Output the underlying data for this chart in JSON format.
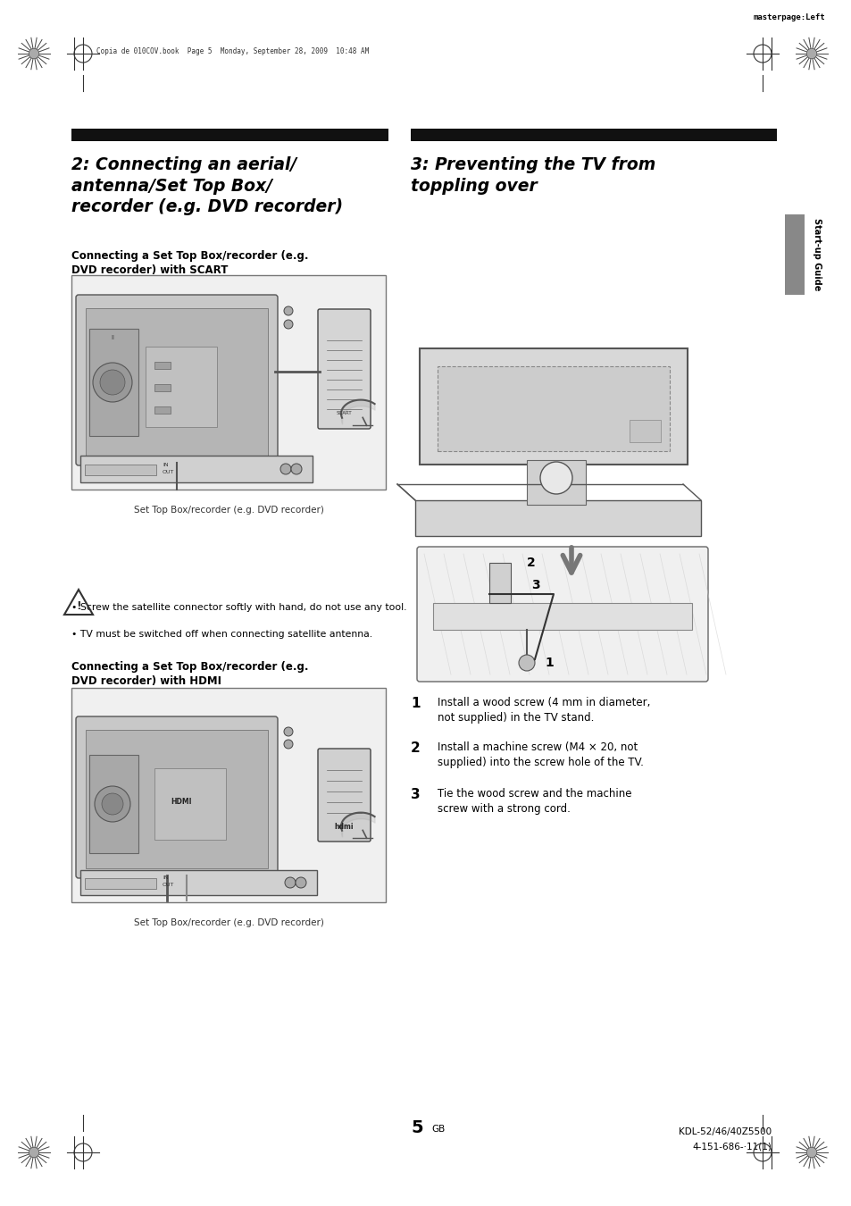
{
  "bg_color": "#ffffff",
  "page_width": 9.54,
  "page_height": 13.5,
  "dpi": 100,
  "top_label": "masterpage:Left",
  "file_label": "Copia de 010COV.book  Page 5  Monday, September 28, 2009  10:48 AM",
  "section2_title": "2: Connecting an aerial/\nantenna/Set Top Box/\nrecorder (e.g. DVD recorder)",
  "section3_title": "3: Preventing the TV from\ntoppling over",
  "subsection1_title": "Connecting a Set Top Box/recorder (e.g.\nDVD recorder) with SCART",
  "subsection2_title": "Connecting a Set Top Box/recorder (e.g.\nDVD recorder) with HDMI",
  "caption1": "Set Top Box/recorder (e.g. DVD recorder)",
  "caption2": "Set Top Box/recorder (e.g. DVD recorder)",
  "step1_num": "1",
  "step1": "Install a wood screw (4 mm in diameter,\nnot supplied) in the TV stand.",
  "step2_num": "2",
  "step2": "Install a machine screw (M4 × 20, not\nsupplied) into the screw hole of the TV.",
  "step3_num": "3",
  "step3": "Tie the wood screw and the machine\nscrew with a strong cord.",
  "page_number": "5",
  "page_gb": "GB",
  "model_number": "KDL-52/46/40Z5500",
  "part_number": "4-151-686-·11(1)",
  "sidebar_text": "Start-up Guide",
  "header_bar_color": "#111111",
  "title_font_size": 13.5,
  "body_font_size": 8.5,
  "small_font_size": 7.8,
  "caption_font_size": 7.5
}
